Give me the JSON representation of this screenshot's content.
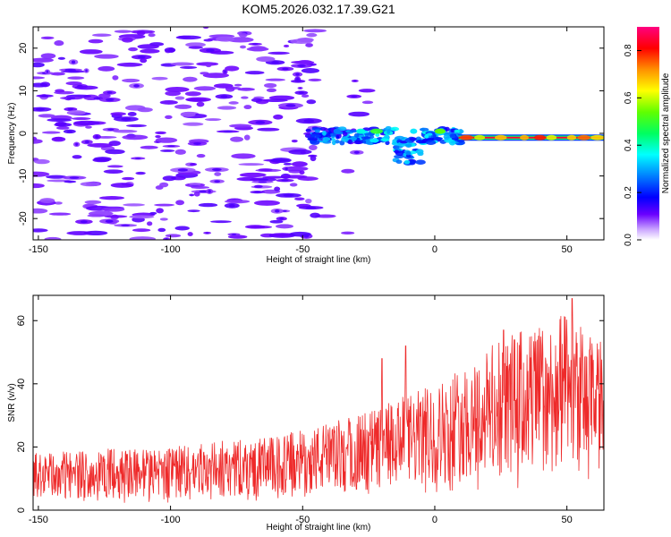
{
  "figure": {
    "title": "KOM5.2026.032.17.39.G21"
  },
  "chart_data": [
    {
      "type": "heatmap",
      "name": "spectrogram",
      "xlabel": "Height of straight line (km)",
      "ylabel": "Frequency (Hz)",
      "xlim": [
        -152,
        64
      ],
      "ylim": [
        -25,
        25
      ],
      "xticks": [
        -150,
        -100,
        -50,
        0,
        50
      ],
      "yticks": [
        -20,
        -10,
        0,
        10,
        20
      ],
      "colorbar": {
        "label": "Normalized spectral amplitude",
        "range": [
          0,
          0.9
        ],
        "ticks": [
          0,
          0.2,
          0.4,
          0.6,
          0.8
        ],
        "tick_labels": [
          "0.0",
          "0.2",
          "0.4",
          "0.6",
          "0.8"
        ]
      },
      "features": {
        "noise_region_km": [
          -152,
          -45
        ],
        "noise_amplitude": 0.15,
        "echo_onset_km": -48,
        "echo_frequency_hz": -1,
        "echo_peak_amplitude": 0.85
      }
    },
    {
      "type": "line",
      "name": "snr",
      "xlabel": "Height of straight line (km)",
      "ylabel": "SNR (v/v)",
      "xlim": [
        -152,
        64
      ],
      "ylim": [
        0,
        68
      ],
      "xticks": [
        -150,
        -100,
        -50,
        0,
        50
      ],
      "yticks": [
        0,
        20,
        40,
        60
      ],
      "color": "#ee2a2a",
      "trend": [
        {
          "x": -152,
          "y": 11
        },
        {
          "x": -100,
          "y": 12
        },
        {
          "x": -60,
          "y": 14
        },
        {
          "x": -30,
          "y": 18
        },
        {
          "x": 0,
          "y": 24
        },
        {
          "x": 30,
          "y": 34
        },
        {
          "x": 50,
          "y": 37
        },
        {
          "x": 64,
          "y": 32
        }
      ],
      "noise_spread": 0.42,
      "peaks": [
        {
          "x": 52,
          "y": 67
        },
        {
          "x": 26,
          "y": 57
        },
        {
          "x": -11,
          "y": 52
        },
        {
          "x": -20,
          "y": 48
        }
      ]
    }
  ]
}
